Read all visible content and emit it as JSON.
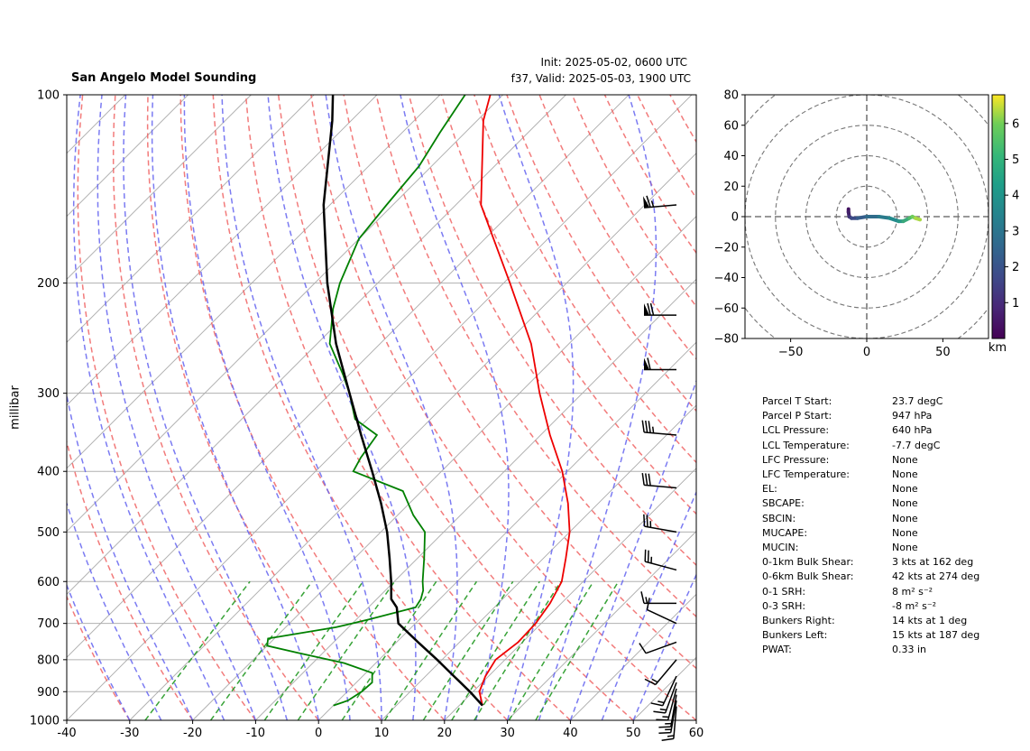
{
  "header": {
    "title": "San Angelo Model Sounding",
    "init": "Init: 2025-05-02, 0600 UTC",
    "valid": "f37, Valid: 2025-05-03, 1900 UTC"
  },
  "colors": {
    "temperature": "#ee0000",
    "dewpoint": "#008000",
    "parcel": "#000000",
    "dry_adiabat": "#f06464",
    "moist_adiabat": "#6464f0",
    "mixing_ratio": "#229922",
    "isotherm": "#aaaaaa"
  },
  "chart_data": [
    {
      "type": "line",
      "name": "skew-t",
      "ylabel": "millibar",
      "xlim": [
        -40,
        60
      ],
      "ylim": [
        1000,
        100
      ],
      "y_log": true,
      "grid": true,
      "xticks": [
        "-40",
        "-30",
        "-20",
        "-10",
        "0",
        "10",
        "20",
        "30",
        "40",
        "50",
        "60"
      ],
      "yticks": [
        "1000",
        "900",
        "800",
        "700",
        "600",
        "500",
        "400",
        "300",
        "200",
        "100"
      ],
      "skew": 35,
      "series": [
        {
          "role": "temperature",
          "points": [
            [
              947,
              23.7
            ],
            [
              900,
              21
            ],
            [
              850,
              19.5
            ],
            [
              800,
              18.5
            ],
            [
              750,
              19.3
            ],
            [
              700,
              19.1
            ],
            [
              650,
              18.2
            ],
            [
              600,
              16.6
            ],
            [
              550,
              13.5
            ],
            [
              500,
              10
            ],
            [
              450,
              5.2
            ],
            [
              400,
              -0.8
            ],
            [
              350,
              -8.5
            ],
            [
              300,
              -16.8
            ],
            [
              250,
              -26
            ],
            [
              200,
              -39
            ],
            [
              150,
              -56
            ],
            [
              110,
              -69
            ],
            [
              100,
              -72
            ]
          ]
        },
        {
          "role": "dewpoint",
          "points": [
            [
              947,
              0
            ],
            [
              930,
              1.5
            ],
            [
              900,
              2.3
            ],
            [
              870,
              2.5
            ],
            [
              840,
              1
            ],
            [
              810,
              -5
            ],
            [
              780,
              -14
            ],
            [
              760,
              -20
            ],
            [
              740,
              -21
            ],
            [
              710,
              -12
            ],
            [
              690,
              -8
            ],
            [
              660,
              -2.5
            ],
            [
              640,
              -3
            ],
            [
              620,
              -4
            ],
            [
              600,
              -5.5
            ],
            [
              550,
              -9
            ],
            [
              500,
              -13
            ],
            [
              470,
              -17.5
            ],
            [
              430,
              -23
            ],
            [
              400,
              -34
            ],
            [
              380,
              -35
            ],
            [
              350,
              -36
            ],
            [
              330,
              -42
            ],
            [
              300,
              -47
            ],
            [
              280,
              -51
            ],
            [
              250,
              -58
            ],
            [
              220,
              -63
            ],
            [
              200,
              -66
            ],
            [
              170,
              -70
            ],
            [
              150,
              -71
            ],
            [
              130,
              -72
            ],
            [
              115,
              -74
            ],
            [
              100,
              -76
            ]
          ]
        },
        {
          "role": "parcel",
          "points": [
            [
              947,
              23.7
            ],
            [
              900,
              19.5
            ],
            [
              850,
              14.5
            ],
            [
              800,
              9.2
            ],
            [
              750,
              3.4
            ],
            [
              700,
              -2.7
            ],
            [
              660,
              -5.5
            ],
            [
              640,
              -7.7
            ],
            [
              600,
              -10.5
            ],
            [
              550,
              -14.5
            ],
            [
              500,
              -19
            ],
            [
              450,
              -24.5
            ],
            [
              400,
              -31
            ],
            [
              350,
              -38.5
            ],
            [
              300,
              -47
            ],
            [
              250,
              -57
            ],
            [
              200,
              -68
            ],
            [
              150,
              -81
            ],
            [
              110,
              -93
            ],
            [
              100,
              -97
            ]
          ]
        }
      ],
      "wind_barbs": [
        {
          "pressure": 950,
          "direction": 185,
          "speed": 15
        },
        {
          "pressure": 930,
          "direction": 190,
          "speed": 15
        },
        {
          "pressure": 910,
          "direction": 190,
          "speed": 15
        },
        {
          "pressure": 890,
          "direction": 195,
          "speed": 15
        },
        {
          "pressure": 870,
          "direction": 200,
          "speed": 15
        },
        {
          "pressure": 850,
          "direction": 205,
          "speed": 15
        },
        {
          "pressure": 800,
          "direction": 220,
          "speed": 15
        },
        {
          "pressure": 750,
          "direction": 250,
          "speed": 10
        },
        {
          "pressure": 700,
          "direction": 295,
          "speed": 10
        },
        {
          "pressure": 650,
          "direction": 270,
          "speed": 15
        },
        {
          "pressure": 575,
          "direction": 285,
          "speed": 25
        },
        {
          "pressure": 500,
          "direction": 280,
          "speed": 25
        },
        {
          "pressure": 425,
          "direction": 275,
          "speed": 30
        },
        {
          "pressure": 350,
          "direction": 275,
          "speed": 35
        },
        {
          "pressure": 275,
          "direction": 270,
          "speed": 60
        },
        {
          "pressure": 225,
          "direction": 270,
          "speed": 70
        },
        {
          "pressure": 150,
          "direction": 265,
          "speed": 65
        }
      ]
    },
    {
      "type": "line",
      "name": "hodograph",
      "xlim": [
        -80,
        80
      ],
      "ylim": [
        -80,
        80
      ],
      "xticks": [
        "−50",
        "0",
        "50"
      ],
      "yticks": [
        "80",
        "60",
        "40",
        "20",
        "0",
        "−20",
        "−40",
        "−60",
        "−80"
      ],
      "ring_interval": 20,
      "colorbar": {
        "label": "km",
        "range": [
          0,
          6.8
        ],
        "ticks": [
          "1",
          "2",
          "3",
          "4",
          "5",
          "6"
        ]
      },
      "points": [
        {
          "u": -12,
          "v": 5,
          "z": 0.2
        },
        {
          "u": -12,
          "v": 3,
          "z": 0.5
        },
        {
          "u": -11.5,
          "v": 0,
          "z": 0.8
        },
        {
          "u": -10,
          "v": -1,
          "z": 1.3
        },
        {
          "u": -6,
          "v": -1,
          "z": 1.8
        },
        {
          "u": 0,
          "v": 0,
          "z": 2.2
        },
        {
          "u": 8,
          "v": 0,
          "z": 2.6
        },
        {
          "u": 15,
          "v": -1,
          "z": 3.0
        },
        {
          "u": 21,
          "v": -3,
          "z": 3.4
        },
        {
          "u": 24,
          "v": -3,
          "z": 3.8
        },
        {
          "u": 28,
          "v": -1,
          "z": 4.4
        },
        {
          "u": 30,
          "v": 0,
          "z": 5.0
        },
        {
          "u": 32,
          "v": -1,
          "z": 5.6
        },
        {
          "u": 35,
          "v": -2,
          "z": 6.2
        }
      ]
    }
  ],
  "parameters": [
    {
      "name": "Parcel T Start:",
      "value": "23.7 degC"
    },
    {
      "name": "Parcel P Start:",
      "value": "947 hPa"
    },
    {
      "name": "LCL Pressure:",
      "value": "640 hPa"
    },
    {
      "name": "LCL Temperature:",
      "value": "-7.7 degC"
    },
    {
      "name": "LFC Pressure:",
      "value": "None"
    },
    {
      "name": "LFC Temperature:",
      "value": "None"
    },
    {
      "name": "EL:",
      "value": "None"
    },
    {
      "name": "SBCAPE:",
      "value": "None"
    },
    {
      "name": "SBCIN:",
      "value": "None"
    },
    {
      "name": "MUCAPE:",
      "value": "None"
    },
    {
      "name": "MUCIN:",
      "value": "None"
    },
    {
      "name": "0-1km Bulk Shear:",
      "value": "3 kts at 162 deg"
    },
    {
      "name": "0-6km Bulk Shear:",
      "value": "42 kts at 274 deg"
    },
    {
      "name": "0-1 SRH:",
      "value": "8 m² s⁻²"
    },
    {
      "name": "0-3 SRH:",
      "value": "-8 m² s⁻²"
    },
    {
      "name": "Bunkers Right:",
      "value": "14 kts at 1 deg"
    },
    {
      "name": "Bunkers Left:",
      "value": "15 kts at 187 deg"
    },
    {
      "name": "PWAT:",
      "value": "0.33 in"
    }
  ]
}
